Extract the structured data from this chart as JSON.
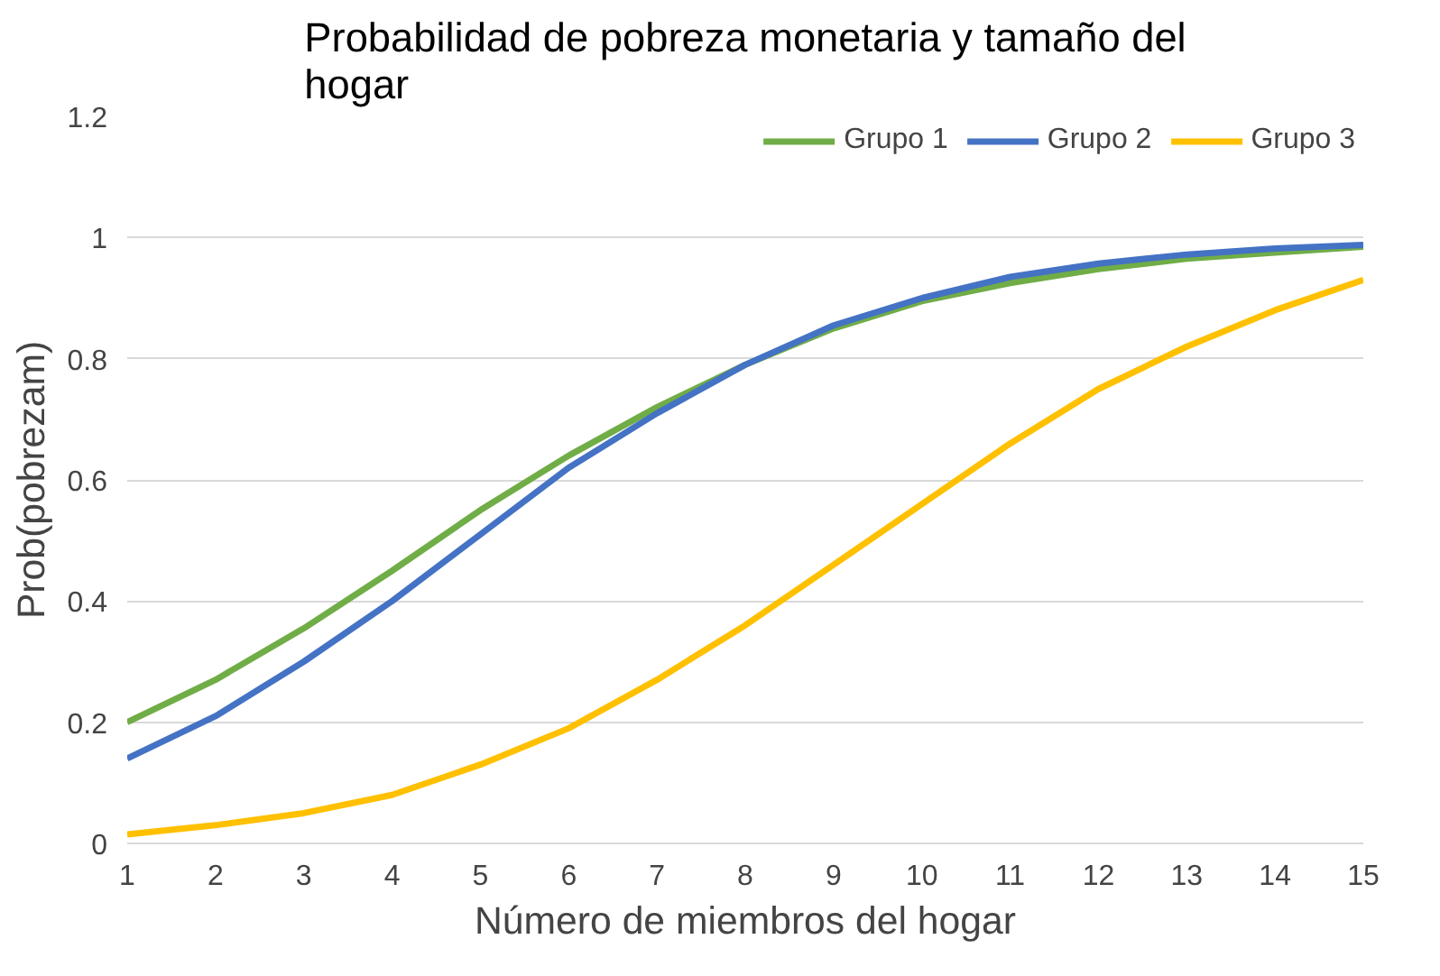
{
  "chart_data": {
    "type": "line",
    "title": "Probabilidad de pobreza monetaria y tamaño del hogar",
    "xlabel": "Número de miembros del hogar",
    "ylabel": "Prob(pobrezam)",
    "x": [
      1,
      2,
      3,
      4,
      5,
      6,
      7,
      8,
      9,
      10,
      11,
      12,
      13,
      14,
      15
    ],
    "series": [
      {
        "name": "Grupo 1",
        "color": "#70ad47",
        "values": [
          0.2,
          0.27,
          0.355,
          0.45,
          0.55,
          0.64,
          0.72,
          0.79,
          0.85,
          0.895,
          0.925,
          0.948,
          0.965,
          0.975,
          0.985
        ]
      },
      {
        "name": "Grupo 2",
        "color": "#4472c4",
        "values": [
          0.14,
          0.21,
          0.3,
          0.4,
          0.51,
          0.62,
          0.71,
          0.79,
          0.855,
          0.9,
          0.935,
          0.957,
          0.972,
          0.982,
          0.988
        ]
      },
      {
        "name": "Grupo 3",
        "color": "#ffc000",
        "values": [
          0.015,
          0.03,
          0.05,
          0.08,
          0.13,
          0.19,
          0.27,
          0.36,
          0.46,
          0.56,
          0.66,
          0.75,
          0.82,
          0.88,
          0.93
        ]
      }
    ],
    "xlim": [
      1,
      15
    ],
    "xticks": [
      1,
      2,
      3,
      4,
      5,
      6,
      7,
      8,
      9,
      10,
      11,
      12,
      13,
      14,
      15
    ],
    "ylim": [
      0,
      1.2
    ],
    "yticks": [
      0,
      0.2,
      0.4,
      0.6,
      0.8,
      1,
      1.2
    ],
    "grid": "y",
    "legend": "top right",
    "marker": "none",
    "line_style": "solid"
  }
}
